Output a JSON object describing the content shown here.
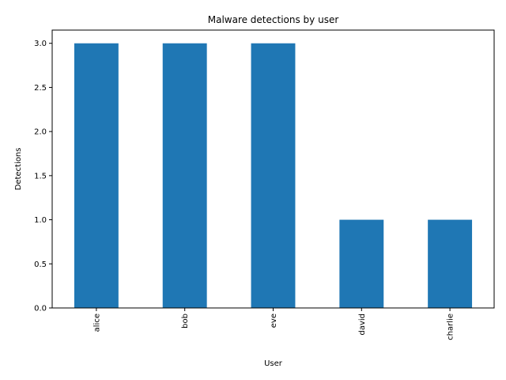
{
  "chart_data": {
    "type": "bar",
    "title": "Malware detections by user",
    "xlabel": "User",
    "ylabel": "Detections",
    "categories": [
      "alice",
      "bob",
      "eve",
      "david",
      "charlie"
    ],
    "values": [
      3,
      3,
      3,
      1,
      1
    ],
    "ylim": [
      0,
      3.15
    ],
    "yticks": [
      0.0,
      0.5,
      1.0,
      1.5,
      2.0,
      2.5,
      3.0
    ],
    "ytick_labels": [
      "0.0",
      "0.5",
      "1.0",
      "1.5",
      "2.0",
      "2.5",
      "3.0"
    ],
    "bar_color": "#1f77b4",
    "grid": false,
    "legend": "none"
  }
}
